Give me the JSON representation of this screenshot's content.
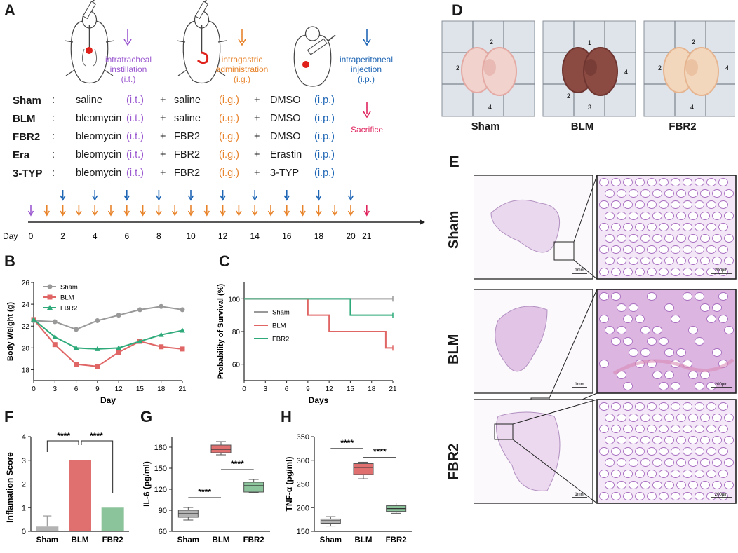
{
  "panels": {
    "A": "A",
    "B": "B",
    "C": "C",
    "D": "D",
    "E": "E",
    "F": "F",
    "G": "G",
    "H": "H"
  },
  "panelA": {
    "routes": [
      {
        "label": "intratracheal instillation",
        "abbr": "(i.t.)",
        "color": "#9b59d0"
      },
      {
        "label": "intragastric administration",
        "abbr": "(i.g.)",
        "color": "#e8842c"
      },
      {
        "label": "intraperitoneal injection",
        "abbr": "(i.p.)",
        "color": "#1f66b5"
      }
    ],
    "sacrifice": "Sacrifice",
    "groups": [
      {
        "name": "Sham",
        "sep": ":",
        "it": "saline",
        "ig": "saline",
        "ip": "DMSO"
      },
      {
        "name": "BLM",
        "sep": ":",
        "it": "bleomycin",
        "ig": "saline",
        "ip": "DMSO"
      },
      {
        "name": "FBR2",
        "sep": ":",
        "it": "bleomycin",
        "ig": "FBR2",
        "ip": "DMSO"
      },
      {
        "name": "Era",
        "sep": ":",
        "it": "bleomycin",
        "ig": "FBR2",
        "ip": "Erastin"
      },
      {
        "name": "3-TYP",
        "sep": ":",
        "it": "bleomycin",
        "ig": "FBR2",
        "ip": "3-TYP"
      }
    ],
    "abbr_it": "(i.t.)",
    "abbr_ig": "(i.g.)",
    "abbr_ip": "(i.p.)",
    "plus": "+",
    "timeline": {
      "label": "Day",
      "ticks": [
        "0",
        "2",
        "4",
        "6",
        "8",
        "10",
        "12",
        "14",
        "16",
        "18",
        "20",
        "21"
      ]
    },
    "colors": {
      "it": "#9b59d0",
      "ig": "#e8842c",
      "ip": "#1f66b5",
      "sac": "#e0245e"
    }
  },
  "panelD": {
    "labels": [
      "Sham",
      "BLM",
      "FBR2"
    ]
  },
  "panelE": {
    "rows": [
      "Sham",
      "BLM",
      "FBR2"
    ],
    "scale_low": "1mm",
    "scale_high": "200μm"
  },
  "chart_data": [
    {
      "id": "B",
      "type": "line",
      "xlabel": "Day",
      "ylabel": "Body Weight (g)",
      "x": [
        0,
        3,
        6,
        9,
        12,
        15,
        18,
        21
      ],
      "xticks": [
        "0",
        "3",
        "6",
        "9",
        "12",
        "15",
        "18",
        "21"
      ],
      "yticks": [
        "18",
        "20",
        "22",
        "24",
        "26"
      ],
      "xlim": [
        0,
        21
      ],
      "ylim": [
        17,
        26
      ],
      "series": [
        {
          "name": "Sham",
          "color": "#999999",
          "marker": "circle",
          "values": [
            22.5,
            22.4,
            21.7,
            22.5,
            23.0,
            23.5,
            23.8,
            23.5
          ]
        },
        {
          "name": "BLM",
          "color": "#e06666",
          "marker": "square",
          "values": [
            22.6,
            20.3,
            18.5,
            18.3,
            19.6,
            20.6,
            20.1,
            19.9
          ]
        },
        {
          "name": "FBR2",
          "color": "#2eaa7a",
          "marker": "triangle",
          "values": [
            22.6,
            21.0,
            20.0,
            19.9,
            20.0,
            20.6,
            21.2,
            21.6
          ]
        }
      ]
    },
    {
      "id": "C",
      "type": "line",
      "xlabel": "Days",
      "ylabel": "Probability of Survival (%)",
      "xticks": [
        "0",
        "3",
        "6",
        "9",
        "12",
        "15",
        "18",
        "21"
      ],
      "yticks": [
        "60",
        "80",
        "100"
      ],
      "xlim": [
        0,
        21
      ],
      "ylim": [
        50,
        110
      ],
      "series": [
        {
          "name": "Sham",
          "color": "#999999",
          "steps": [
            [
              0,
              100
            ],
            [
              21,
              100
            ]
          ]
        },
        {
          "name": "BLM",
          "color": "#e06666",
          "steps": [
            [
              0,
              100
            ],
            [
              9,
              100
            ],
            [
              9,
              90
            ],
            [
              12,
              90
            ],
            [
              12,
              80
            ],
            [
              20,
              80
            ],
            [
              20,
              70
            ],
            [
              21,
              70
            ]
          ]
        },
        {
          "name": "FBR2",
          "color": "#2eaa7a",
          "steps": [
            [
              0,
              100
            ],
            [
              15,
              100
            ],
            [
              15,
              90
            ],
            [
              21,
              90
            ]
          ]
        }
      ]
    },
    {
      "id": "F",
      "type": "bar",
      "ylabel": "Inflamation Score",
      "categories": [
        "Sham",
        "BLM",
        "FBR2"
      ],
      "values": [
        0.2,
        3.0,
        1.0
      ],
      "errors": [
        0.45,
        0,
        0
      ],
      "colors": [
        "#b3b3b3",
        "#e07070",
        "#8bc39a"
      ],
      "yticks": [
        "0",
        "1",
        "2",
        "3",
        "4"
      ],
      "ylim": [
        0,
        4
      ],
      "significance": [
        "****",
        "****"
      ]
    },
    {
      "id": "G",
      "type": "box",
      "ylabel": "IL-6 (pg/ml)",
      "categories": [
        "Sham",
        "BLM",
        "FBR2"
      ],
      "boxes": [
        {
          "min": 76,
          "q1": 80,
          "median": 85,
          "q3": 90,
          "max": 94,
          "color": "#b3b3b3"
        },
        {
          "min": 169,
          "q1": 172,
          "median": 177,
          "q3": 183,
          "max": 188,
          "color": "#e07070"
        },
        {
          "min": 115,
          "q1": 116,
          "median": 125,
          "q3": 130,
          "max": 134,
          "color": "#8bc39a"
        }
      ],
      "yticks": [
        "60",
        "90",
        "120",
        "150",
        "180"
      ],
      "ylim": [
        60,
        195
      ],
      "significance": [
        "****",
        "****"
      ]
    },
    {
      "id": "H",
      "type": "box",
      "ylabel": "TNF-α (pg/ml)",
      "categories": [
        "Sham",
        "BLM",
        "FBR2"
      ],
      "boxes": [
        {
          "min": 161,
          "q1": 167,
          "median": 172,
          "q3": 176,
          "max": 181,
          "color": "#b3b3b3"
        },
        {
          "min": 261,
          "q1": 270,
          "median": 285,
          "q3": 293,
          "max": 296,
          "color": "#e07070"
        },
        {
          "min": 188,
          "q1": 192,
          "median": 198,
          "q3": 204,
          "max": 210,
          "color": "#8bc39a"
        }
      ],
      "yticks": [
        "150",
        "200",
        "250",
        "300",
        "350"
      ],
      "ylim": [
        150,
        350
      ],
      "significance": [
        "****",
        "****"
      ]
    }
  ]
}
